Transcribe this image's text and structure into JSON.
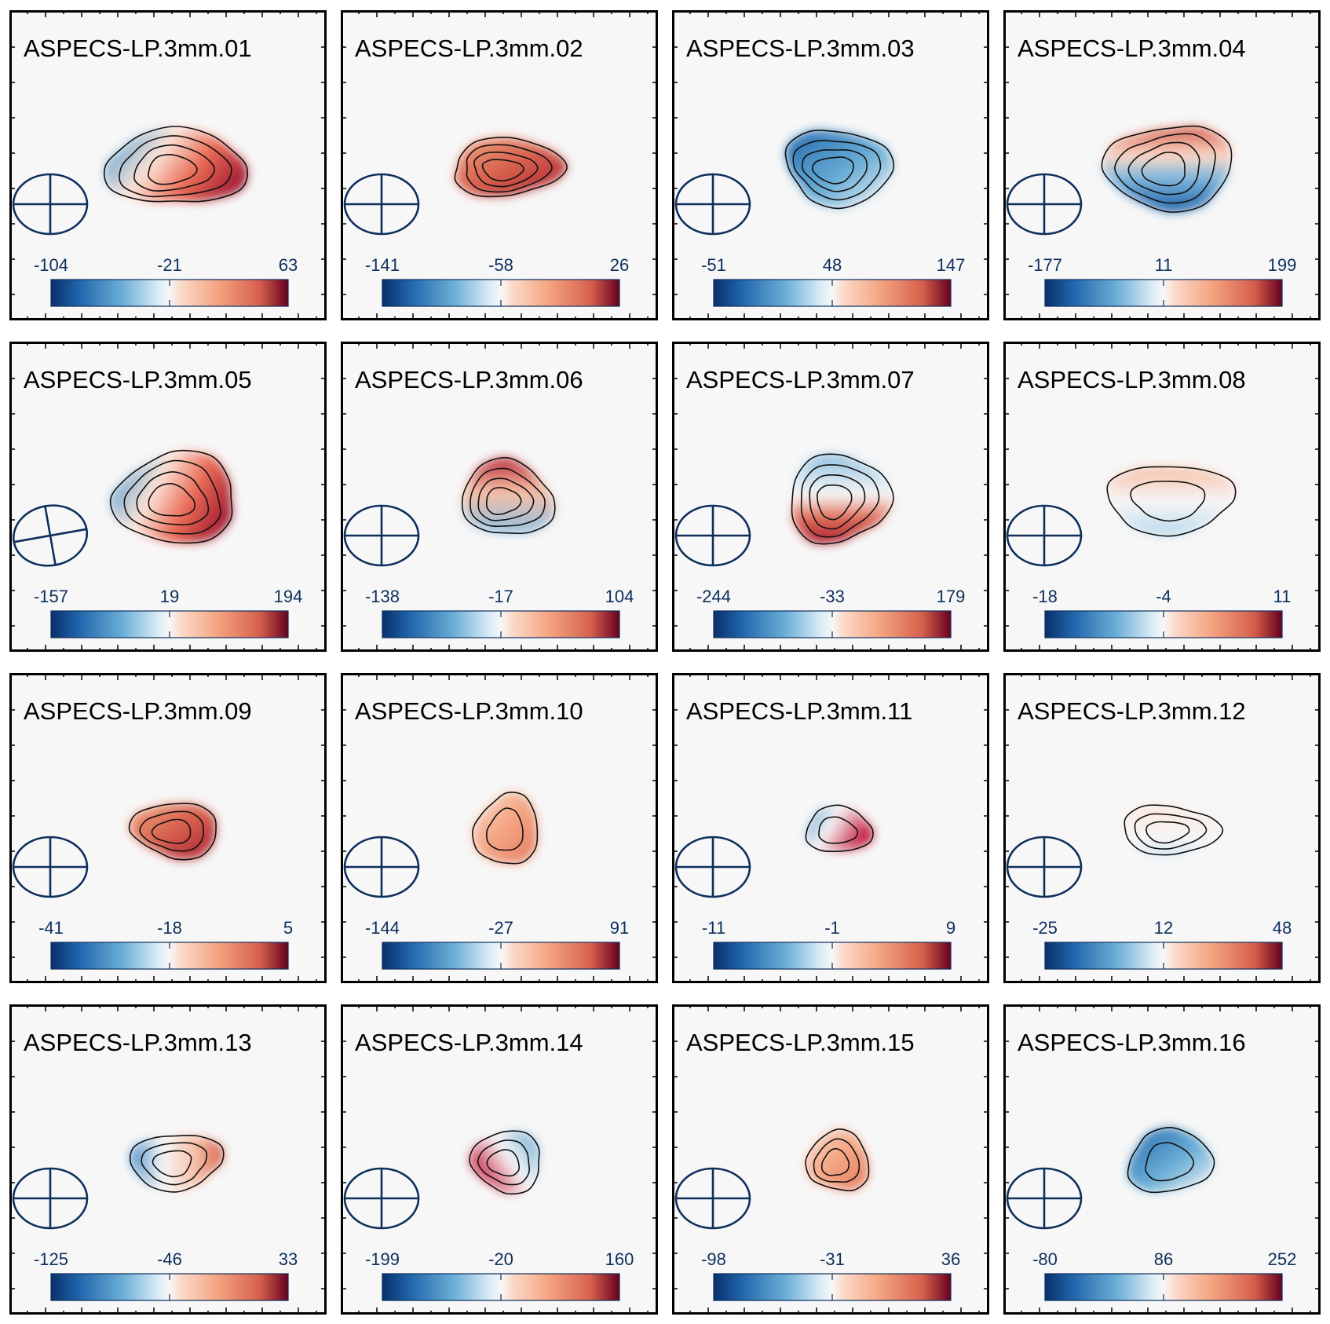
{
  "chart_data": [
    {
      "type": "heatmap",
      "title": "ASPECS-LP.3mm.01",
      "colorbar": {
        "min": -104,
        "mid": -21,
        "max": 63
      },
      "beam": {
        "tilt_deg": 0
      },
      "moment0": {
        "rx": 86,
        "ry": 50,
        "pattern": "lr",
        "contours": 4
      }
    },
    {
      "type": "heatmap",
      "title": "ASPECS-LP.3mm.02",
      "colorbar": {
        "min": -141,
        "mid": -58,
        "max": 26
      },
      "beam": {
        "tilt_deg": 0
      },
      "moment0": {
        "rx": 72,
        "ry": 36,
        "pattern": "red",
        "contours": 4
      }
    },
    {
      "type": "heatmap",
      "title": "ASPECS-LP.3mm.03",
      "colorbar": {
        "min": -51,
        "mid": 48,
        "max": 147
      },
      "beam": {
        "tilt_deg": 0
      },
      "moment0": {
        "rx": 68,
        "ry": 48,
        "pattern": "blue",
        "contours": 4
      }
    },
    {
      "type": "heatmap",
      "title": "ASPECS-LP.3mm.04",
      "colorbar": {
        "min": -177,
        "mid": 11,
        "max": 199
      },
      "beam": {
        "tilt_deg": 0
      },
      "moment0": {
        "rx": 78,
        "ry": 56,
        "pattern": "tb",
        "contours": 4
      }
    },
    {
      "type": "heatmap",
      "title": "ASPECS-LP.3mm.05",
      "colorbar": {
        "min": -157,
        "mid": 19,
        "max": 194
      },
      "beam": {
        "tilt_deg": -10
      },
      "moment0": {
        "rx": 80,
        "ry": 56,
        "pattern": "lr",
        "contours": 4
      }
    },
    {
      "type": "heatmap",
      "title": "ASPECS-LP.3mm.06",
      "colorbar": {
        "min": -138,
        "mid": -17,
        "max": 104
      },
      "beam": {
        "tilt_deg": 0
      },
      "moment0": {
        "rx": 58,
        "ry": 48,
        "pattern": "tb-red",
        "contours": 4
      }
    },
    {
      "type": "heatmap",
      "title": "ASPECS-LP.3mm.07",
      "colorbar": {
        "min": -244,
        "mid": -33,
        "max": 179
      },
      "beam": {
        "tilt_deg": 0
      },
      "moment0": {
        "rx": 62,
        "ry": 58,
        "pattern": "bt",
        "contours": 4
      }
    },
    {
      "type": "heatmap",
      "title": "ASPECS-LP.3mm.08",
      "colorbar": {
        "min": -18,
        "mid": -4,
        "max": 11
      },
      "beam": {
        "tilt_deg": 0
      },
      "moment0": {
        "rx": 84,
        "ry": 42,
        "pattern": "tb-soft",
        "contours": 2
      }
    },
    {
      "type": "heatmap",
      "title": "ASPECS-LP.3mm.09",
      "colorbar": {
        "min": -41,
        "mid": -18,
        "max": 5
      },
      "beam": {
        "tilt_deg": 0
      },
      "moment0": {
        "rx": 54,
        "ry": 36,
        "pattern": "red",
        "contours": 3
      }
    },
    {
      "type": "heatmap",
      "title": "ASPECS-LP.3mm.10",
      "colorbar": {
        "min": -144,
        "mid": -27,
        "max": 91
      },
      "beam": {
        "tilt_deg": 0
      },
      "moment0": {
        "rx": 40,
        "ry": 46,
        "pattern": "red-soft",
        "contours": 2
      }
    },
    {
      "type": "heatmap",
      "title": "ASPECS-LP.3mm.11",
      "colorbar": {
        "min": -11,
        "mid": -1,
        "max": 9
      },
      "beam": {
        "tilt_deg": 0
      },
      "moment0": {
        "rx": 44,
        "ry": 28,
        "pattern": "lr-small",
        "contours": 2
      }
    },
    {
      "type": "heatmap",
      "title": "ASPECS-LP.3mm.12",
      "colorbar": {
        "min": -25,
        "mid": 12,
        "max": 48
      },
      "beam": {
        "tilt_deg": 0
      },
      "moment0": {
        "rx": 60,
        "ry": 32,
        "pattern": "faint",
        "contours": 3
      }
    },
    {
      "type": "heatmap",
      "title": "ASPECS-LP.3mm.13",
      "colorbar": {
        "min": -125,
        "mid": -46,
        "max": 33
      },
      "beam": {
        "tilt_deg": 0
      },
      "moment0": {
        "rx": 58,
        "ry": 36,
        "pattern": "lr-soft",
        "contours": 3
      }
    },
    {
      "type": "heatmap",
      "title": "ASPECS-LP.3mm.14",
      "colorbar": {
        "min": -199,
        "mid": -20,
        "max": 160
      },
      "beam": {
        "tilt_deg": 0
      },
      "moment0": {
        "rx": 46,
        "ry": 38,
        "pattern": "rl",
        "contours": 3
      }
    },
    {
      "type": "heatmap",
      "title": "ASPECS-LP.3mm.15",
      "colorbar": {
        "min": -98,
        "mid": -31,
        "max": 36
      },
      "beam": {
        "tilt_deg": 0
      },
      "moment0": {
        "rx": 38,
        "ry": 40,
        "pattern": "red-soft",
        "contours": 3
      }
    },
    {
      "type": "heatmap",
      "title": "ASPECS-LP.3mm.16",
      "colorbar": {
        "min": -80,
        "mid": 86,
        "max": 252
      },
      "beam": {
        "tilt_deg": 0
      },
      "moment0": {
        "rx": 54,
        "ry": 40,
        "pattern": "blue",
        "contours": 2
      }
    }
  ]
}
